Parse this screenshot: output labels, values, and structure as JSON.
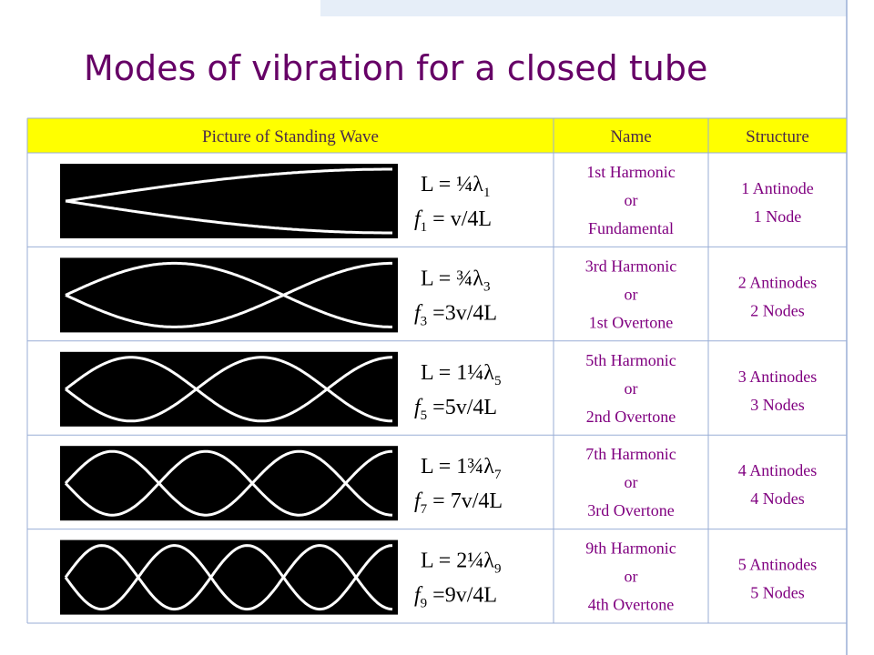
{
  "title": "Modes of vibration for a closed tube",
  "table": {
    "header": [
      "Picture of Standing Wave",
      "Name",
      "Structure"
    ],
    "rows": [
      {
        "length": "L = ¼λ",
        "length_sub": "1",
        "freq": "f",
        "freq_sub": "1",
        "freq_rest": " = v/4L",
        "name": [
          "1st Harmonic",
          "or",
          "Fundamental"
        ],
        "structure": [
          "1 Antinode",
          "1 Node"
        ]
      },
      {
        "length": "L = ¾λ",
        "length_sub": "3",
        "freq": "f",
        "freq_sub": "3",
        "freq_rest": " =3v/4L",
        "name": [
          "3rd Harmonic",
          "or",
          "1st Overtone"
        ],
        "structure": [
          "2 Antinodes",
          "2 Nodes"
        ]
      },
      {
        "length": "L = 1¼λ",
        "length_sub": "5",
        "freq": "f",
        "freq_sub": "5",
        "freq_rest": " =5v/4L",
        "name": [
          "5th Harmonic",
          "or",
          "2nd Overtone"
        ],
        "structure": [
          "3 Antinodes",
          "3 Nodes"
        ]
      },
      {
        "length": "L = 1¾λ",
        "length_sub": "7",
        "freq": "f",
        "freq_sub": "7",
        "freq_rest": " = 7v/4L",
        "name": [
          "7th Harmonic",
          "or",
          "3rd Overtone"
        ],
        "structure": [
          "4 Antinodes",
          "4 Nodes"
        ]
      },
      {
        "length": "L = 2¼λ",
        "length_sub": "9",
        "freq": "f",
        "freq_sub": "9",
        "freq_rest": " =9v/4L",
        "name": [
          "9th Harmonic",
          "or",
          "4th Overtone"
        ],
        "structure": [
          "5 Antinodes",
          "5 Nodes"
        ]
      }
    ]
  }
}
